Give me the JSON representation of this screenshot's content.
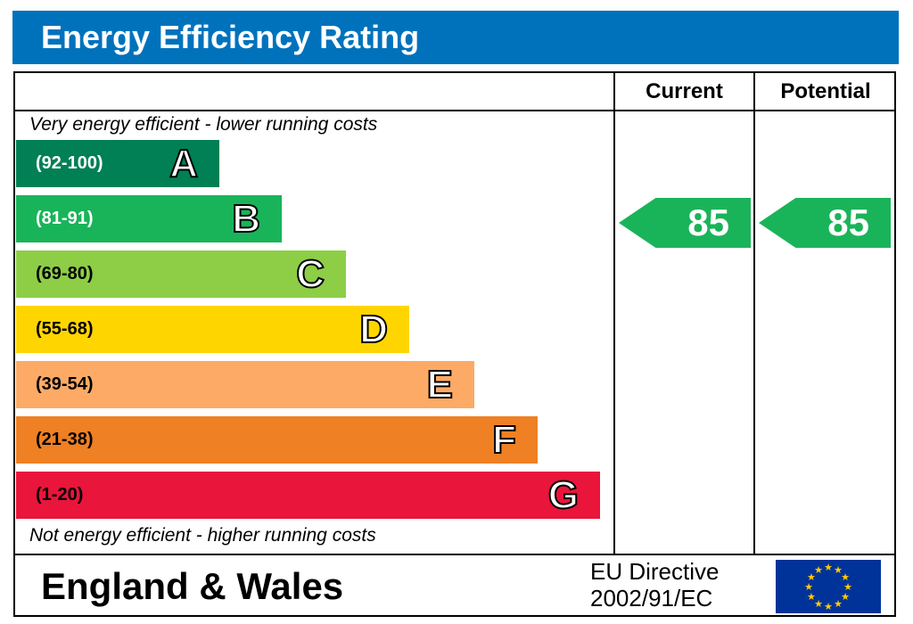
{
  "title": "Energy Efficiency Rating",
  "headers": {
    "current": "Current",
    "potential": "Potential"
  },
  "notes": {
    "top": "Very energy efficient - lower running costs",
    "bottom": "Not energy efficient - higher running costs"
  },
  "chart_data": {
    "type": "bar",
    "categories": [
      "A",
      "B",
      "C",
      "D",
      "E",
      "F",
      "G"
    ],
    "ranges": [
      "(92-100)",
      "(81-91)",
      "(69-80)",
      "(55-68)",
      "(39-54)",
      "(21-38)",
      "(1-20)"
    ],
    "colors": [
      "#008054",
      "#19b459",
      "#8dce46",
      "#ffd500",
      "#fcaa65",
      "#ef8023",
      "#e9153b"
    ],
    "current": {
      "value": "85",
      "band": "B"
    },
    "potential": {
      "value": "85",
      "band": "B"
    }
  },
  "footer": {
    "region": "England & Wales",
    "directive_line1": "EU Directive",
    "directive_line2": "2002/91/EC"
  }
}
